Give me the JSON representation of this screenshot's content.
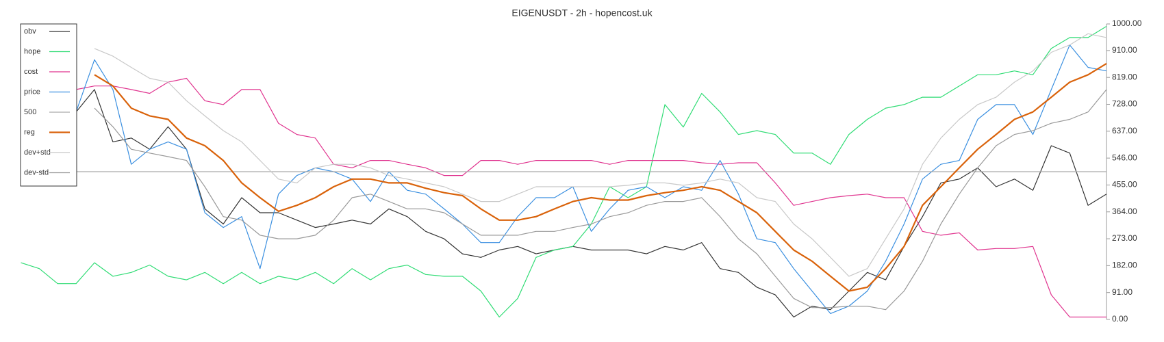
{
  "chart_data": {
    "type": "line",
    "title": "EIGENUSDT - 2h - hopencost.uk",
    "ylim": [
      0,
      1000
    ],
    "yticks": [
      {
        "value": 0,
        "label": "0.00"
      },
      {
        "value": 91,
        "label": "91.00"
      },
      {
        "value": 182,
        "label": "182.00"
      },
      {
        "value": 273,
        "label": "273.00"
      },
      {
        "value": 364,
        "label": "364.00"
      },
      {
        "value": 455,
        "label": "455.00"
      },
      {
        "value": 546,
        "label": "546.00"
      },
      {
        "value": 637,
        "label": "637.00"
      },
      {
        "value": 728,
        "label": "728.00"
      },
      {
        "value": 819,
        "label": "819.00"
      },
      {
        "value": 910,
        "label": "910.00"
      },
      {
        "value": 1000,
        "label": "1000.00"
      }
    ],
    "legend": "upper left",
    "series": [
      {
        "name": "obv",
        "color": "#333333",
        "width": 1.2,
        "values": [
          null,
          null,
          null,
          702,
          778,
          601,
          614,
          576,
          652,
          576,
          374,
          323,
          412,
          361,
          361,
          336,
          311,
          323,
          336,
          323,
          374,
          348,
          298,
          273,
          222,
          210,
          235,
          247,
          222,
          235,
          247,
          235,
          235,
          235,
          222,
          247,
          235,
          260,
          172,
          159,
          109,
          83,
          8,
          45,
          33,
          96,
          159,
          134,
          247,
          348,
          462,
          475,
          513,
          449,
          475,
          437,
          588,
          563,
          386,
          424
        ]
      },
      {
        "name": "hope",
        "color": "#2fdc74",
        "width": 1.2,
        "values": [
          192,
          172,
          121,
          121,
          192,
          146,
          159,
          184,
          146,
          134,
          159,
          121,
          159,
          121,
          146,
          134,
          159,
          121,
          172,
          134,
          172,
          184,
          152,
          146,
          146,
          96,
          8,
          71,
          210,
          235,
          247,
          323,
          449,
          412,
          449,
          727,
          651,
          765,
          702,
          626,
          639,
          626,
          563,
          563,
          525,
          626,
          677,
          715,
          727,
          752,
          752,
          790,
          828,
          828,
          841,
          828,
          917,
          954,
          954,
          992
        ]
      },
      {
        "name": "cost",
        "color": "#e0348f",
        "width": 1.2,
        "values": [
          null,
          null,
          null,
          778,
          790,
          790,
          778,
          765,
          803,
          816,
          740,
          727,
          778,
          778,
          664,
          626,
          614,
          525,
          513,
          538,
          538,
          525,
          513,
          487,
          487,
          538,
          538,
          525,
          538,
          538,
          538,
          538,
          525,
          538,
          538,
          538,
          538,
          530,
          525,
          530,
          530,
          462,
          386,
          399,
          412,
          419,
          424,
          412,
          412,
          298,
          285,
          293,
          235,
          240,
          240,
          247,
          83,
          8,
          8,
          8
        ]
      },
      {
        "name": "price",
        "color": "#3a8fe0",
        "width": 1.2,
        "values": [
          null,
          null,
          null,
          702,
          879,
          778,
          525,
          576,
          601,
          576,
          361,
          311,
          348,
          172,
          424,
          487,
          513,
          500,
          475,
          399,
          500,
          437,
          424,
          374,
          323,
          260,
          260,
          348,
          412,
          412,
          449,
          298,
          374,
          437,
          449,
          412,
          449,
          437,
          538,
          424,
          273,
          260,
          172,
          96,
          20,
          45,
          96,
          197,
          323,
          475,
          525,
          538,
          677,
          727,
          727,
          626,
          778,
          929,
          853,
          841
        ]
      },
      {
        "name": "500",
        "color": "#aaaaaa",
        "width": 1.2,
        "values": [
          500,
          500,
          500,
          500,
          500,
          500,
          500,
          500,
          500,
          500,
          500,
          500,
          500,
          500,
          500,
          500,
          500,
          500,
          500,
          500,
          500,
          500,
          500,
          500,
          500,
          500,
          500,
          500,
          500,
          500,
          500,
          500,
          500,
          500,
          500,
          500,
          500,
          500,
          500,
          500,
          500,
          500,
          500,
          500,
          500,
          500,
          500,
          500,
          500,
          500,
          500,
          500,
          500,
          500,
          500,
          500,
          500,
          500,
          500,
          500
        ]
      },
      {
        "name": "reg",
        "color": "#d9620a",
        "width": 2.2,
        "values": [
          null,
          null,
          null,
          null,
          828,
          790,
          715,
          689,
          677,
          614,
          588,
          538,
          462,
          412,
          366,
          386,
          412,
          449,
          475,
          475,
          462,
          462,
          444,
          429,
          419,
          374,
          336,
          336,
          348,
          374,
          399,
          412,
          404,
          404,
          419,
          429,
          437,
          449,
          437,
          399,
          361,
          298,
          235,
          197,
          146,
          96,
          109,
          172,
          247,
          386,
          449,
          513,
          576,
          626,
          677,
          702,
          752,
          803,
          828,
          866
        ]
      },
      {
        "name": "dev+std",
        "color": "#c8c8c8",
        "width": 1.2,
        "values": [
          null,
          null,
          null,
          null,
          917,
          891,
          853,
          816,
          803,
          740,
          689,
          639,
          601,
          538,
          475,
          462,
          513,
          525,
          525,
          513,
          487,
          475,
          462,
          449,
          424,
          399,
          399,
          424,
          449,
          449,
          449,
          449,
          449,
          454,
          462,
          462,
          454,
          462,
          475,
          462,
          412,
          399,
          323,
          273,
          210,
          146,
          172,
          273,
          374,
          525,
          614,
          677,
          727,
          752,
          803,
          841,
          904,
          929,
          967,
          954
        ]
      },
      {
        "name": "dev-std",
        "color": "#999999",
        "width": 1.2,
        "values": [
          null,
          null,
          null,
          null,
          715,
          652,
          576,
          563,
          551,
          538,
          449,
          348,
          336,
          285,
          273,
          273,
          285,
          336,
          412,
          424,
          399,
          374,
          374,
          361,
          323,
          285,
          285,
          285,
          298,
          298,
          311,
          323,
          348,
          361,
          386,
          399,
          399,
          412,
          348,
          273,
          222,
          146,
          71,
          40,
          40,
          45,
          45,
          33,
          96,
          197,
          323,
          424,
          513,
          588,
          626,
          639,
          664,
          677,
          702,
          778
        ]
      }
    ]
  }
}
